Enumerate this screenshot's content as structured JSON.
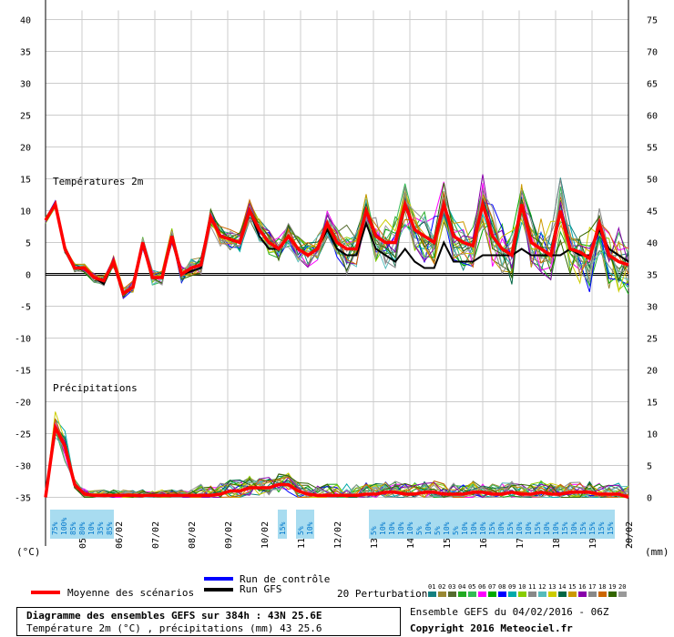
{
  "chart_data": {
    "type": "line",
    "temperature_ticks": [
      "40",
      "35",
      "30",
      "25",
      "20",
      "15",
      "10",
      "5",
      "0",
      "-5",
      "-10",
      "-15",
      "-20",
      "-25",
      "-30",
      "-35"
    ],
    "precip_ticks": [
      "75",
      "70",
      "65",
      "60",
      "55",
      "50",
      "45",
      "40",
      "35",
      "30",
      "25",
      "20",
      "15",
      "10",
      "5",
      "0"
    ],
    "left_unit": "(°C)",
    "right_unit": "(mm)",
    "date_labels": [
      "05/02",
      "06/02",
      "07/02",
      "08/02",
      "09/02",
      "10/02",
      "11/02",
      "12/02",
      "13/02",
      "14/02",
      "15/02",
      "16/02",
      "17/02",
      "18/02",
      "19/02",
      "20/02"
    ],
    "temp_title": "Températures 2m",
    "precip_title": "Précipitations",
    "temp_mean": [
      8.5,
      11,
      4,
      1,
      1,
      -0.5,
      -1,
      2,
      -3,
      -2,
      5,
      -0.5,
      -0.5,
      6,
      0,
      1,
      1.5,
      9,
      6,
      5.5,
      5,
      10,
      7,
      5,
      4,
      6,
      4,
      3,
      4,
      8,
      5,
      4,
      4,
      10,
      6,
      5,
      5,
      11,
      7,
      6,
      5,
      11,
      6,
      5,
      4.5,
      11,
      6,
      4,
      3,
      11,
      5,
      4,
      3,
      10,
      4,
      3.5,
      2.5,
      8,
      3,
      2,
      1.5
    ],
    "temp_gfs": [
      8.5,
      11,
      4,
      1,
      1,
      -0.5,
      -1.5,
      2,
      -3,
      -2,
      5,
      -0.5,
      -0.5,
      6,
      0,
      0.5,
      1,
      9,
      6,
      5.5,
      5,
      10,
      6,
      4,
      4,
      6,
      4,
      3,
      4,
      7,
      4,
      3,
      3,
      8,
      4,
      3,
      2,
      4,
      2,
      1,
      1,
      5,
      2,
      2,
      2,
      3,
      3,
      3,
      3,
      4,
      3,
      3,
      3,
      3,
      4,
      3,
      3,
      7,
      4,
      3,
      2
    ],
    "temp_control": [
      8.5,
      11,
      4,
      1,
      1,
      -0.5,
      -1,
      2,
      -3,
      -2,
      5,
      -0.5,
      -0.5,
      6,
      0,
      1,
      1.5,
      9,
      6,
      5.5,
      5,
      10,
      7,
      5,
      4,
      6,
      4,
      3,
      4,
      8,
      5,
      4,
      4,
      10,
      6,
      5,
      5,
      11,
      7,
      6,
      5,
      11,
      6,
      5,
      4.5,
      11,
      6,
      4,
      3,
      11,
      5,
      4,
      3,
      10,
      4,
      3.5,
      2.5,
      8,
      3,
      2,
      1.5
    ],
    "precip_mean": [
      0,
      11,
      8,
      2,
      0.5,
      0.3,
      0.3,
      0.3,
      0.3,
      0.3,
      0.3,
      0.3,
      0.3,
      0.3,
      0.3,
      0.3,
      0.3,
      0.3,
      0.5,
      1,
      1,
      1.5,
      1.5,
      1.5,
      2,
      2,
      1,
      0.5,
      0.3,
      0.3,
      0.3,
      0.3,
      0.3,
      0.5,
      0.5,
      0.8,
      0.8,
      0.5,
      0.5,
      0.8,
      0.8,
      0.5,
      0.5,
      0.5,
      0.8,
      0.8,
      0.5,
      0.5,
      0.8,
      0.5,
      0.5,
      0.8,
      0.5,
      0.5,
      0.8,
      0.8,
      0.8,
      0.5,
      0.5,
      0.5,
      0
    ],
    "ensemble_colors": [
      "#158080",
      "#998833",
      "#556b2f",
      "#22aa22",
      "#33bb55",
      "#ff00ff",
      "#00aa00",
      "#0000ff",
      "#00aaaa",
      "#88cc00",
      "#888888",
      "#55bbbb",
      "#cccc00",
      "#006644",
      "#cc9900",
      "#8800aa",
      "#888888",
      "#cc6600",
      "#336600",
      "#999999"
    ],
    "probability_labels": [
      {
        "d": 0.25,
        "t": "75%"
      },
      {
        "d": 0.5,
        "t": "100%"
      },
      {
        "d": 0.75,
        "t": "85%"
      },
      {
        "d": 1.0,
        "t": "80%"
      },
      {
        "d": 1.25,
        "t": "10%"
      },
      {
        "d": 1.5,
        "t": "35%"
      },
      {
        "d": 1.75,
        "t": "85%"
      },
      {
        "d": 6.5,
        "t": "15%"
      },
      {
        "d": 7.0,
        "t": "5%"
      },
      {
        "d": 7.25,
        "t": "10%"
      },
      {
        "d": 9.0,
        "t": "5%"
      },
      {
        "d": 9.25,
        "t": "10%"
      },
      {
        "d": 9.5,
        "t": "10%"
      },
      {
        "d": 9.75,
        "t": "10%"
      },
      {
        "d": 10.0,
        "t": "10%"
      },
      {
        "d": 10.25,
        "t": "5%"
      },
      {
        "d": 10.5,
        "t": "10%"
      },
      {
        "d": 10.75,
        "t": "5%"
      },
      {
        "d": 11.0,
        "t": "10%"
      },
      {
        "d": 11.25,
        "t": "5%"
      },
      {
        "d": 11.5,
        "t": "10%"
      },
      {
        "d": 11.75,
        "t": "10%"
      },
      {
        "d": 12.0,
        "t": "10%"
      },
      {
        "d": 12.25,
        "t": "15%"
      },
      {
        "d": 12.5,
        "t": "10%"
      },
      {
        "d": 12.75,
        "t": "15%"
      },
      {
        "d": 13.0,
        "t": "10%"
      },
      {
        "d": 13.25,
        "t": "10%"
      },
      {
        "d": 13.5,
        "t": "15%"
      },
      {
        "d": 13.75,
        "t": "10%"
      },
      {
        "d": 14.0,
        "t": "10%"
      },
      {
        "d": 14.25,
        "t": "15%"
      },
      {
        "d": 14.5,
        "t": "10%"
      },
      {
        "d": 14.75,
        "t": "15%"
      },
      {
        "d": 15.0,
        "t": "15%"
      },
      {
        "d": 15.25,
        "t": "15%"
      },
      {
        "d": 15.5,
        "t": "15%"
      }
    ]
  },
  "legend": {
    "mean_label": "Moyenne des scénarios",
    "control_label": "Run de contrôle",
    "gfs_label": "Run GFS",
    "perturbations_label": "20 Perturbations",
    "perturbation_numbers": [
      "01",
      "02",
      "03",
      "04",
      "05",
      "06",
      "07",
      "08",
      "09",
      "10",
      "11",
      "12",
      "13",
      "14",
      "15",
      "16",
      "17",
      "18",
      "19",
      "20"
    ]
  },
  "footer": {
    "title": "Diagramme des ensembles GEFS sur 384h : 43N 25.6E",
    "subtitle": "Température 2m (°C) , précipitations (mm) 43 25.6",
    "run_info": "Ensemble GEFS du 04/02/2016 - 06Z",
    "copyright": "Copyright 2016 Meteociel.fr"
  },
  "colors": {
    "mean": "#ff0000",
    "control": "#0000ff",
    "gfs": "#000000",
    "grid": "#cccccc",
    "prob_fill": "#a8dcf0",
    "prob_text": "#0077cc"
  }
}
